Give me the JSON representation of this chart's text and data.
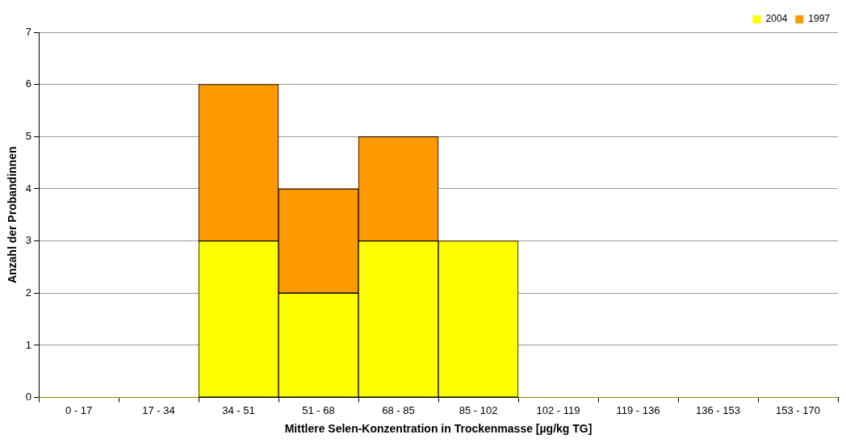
{
  "chart_data": {
    "type": "bar",
    "stacked": true,
    "xlabel": "Mittlere Selen-Konzentration in Trockenmasse [µg/kg TG]",
    "ylabel": "Anzahl der Probandinnen",
    "categories": [
      "0 - 17",
      "17 - 34",
      "34 - 51",
      "51 - 68",
      "68 - 85",
      "85 - 102",
      "102 - 119",
      "119 - 136",
      "136 - 153",
      "153 - 170"
    ],
    "series": [
      {
        "name": "2004",
        "color": "#ffff00",
        "values": [
          0,
          0,
          3,
          2,
          3,
          3,
          0,
          0,
          0,
          0
        ]
      },
      {
        "name": "1997",
        "color": "#ff9900",
        "values": [
          0,
          0,
          3,
          2,
          2,
          0,
          0,
          0,
          0,
          0
        ]
      }
    ],
    "ylim": [
      0,
      7
    ],
    "yticks": [
      0,
      1,
      2,
      3,
      4,
      5,
      6,
      7
    ],
    "grid": "y",
    "legend": "top right"
  }
}
